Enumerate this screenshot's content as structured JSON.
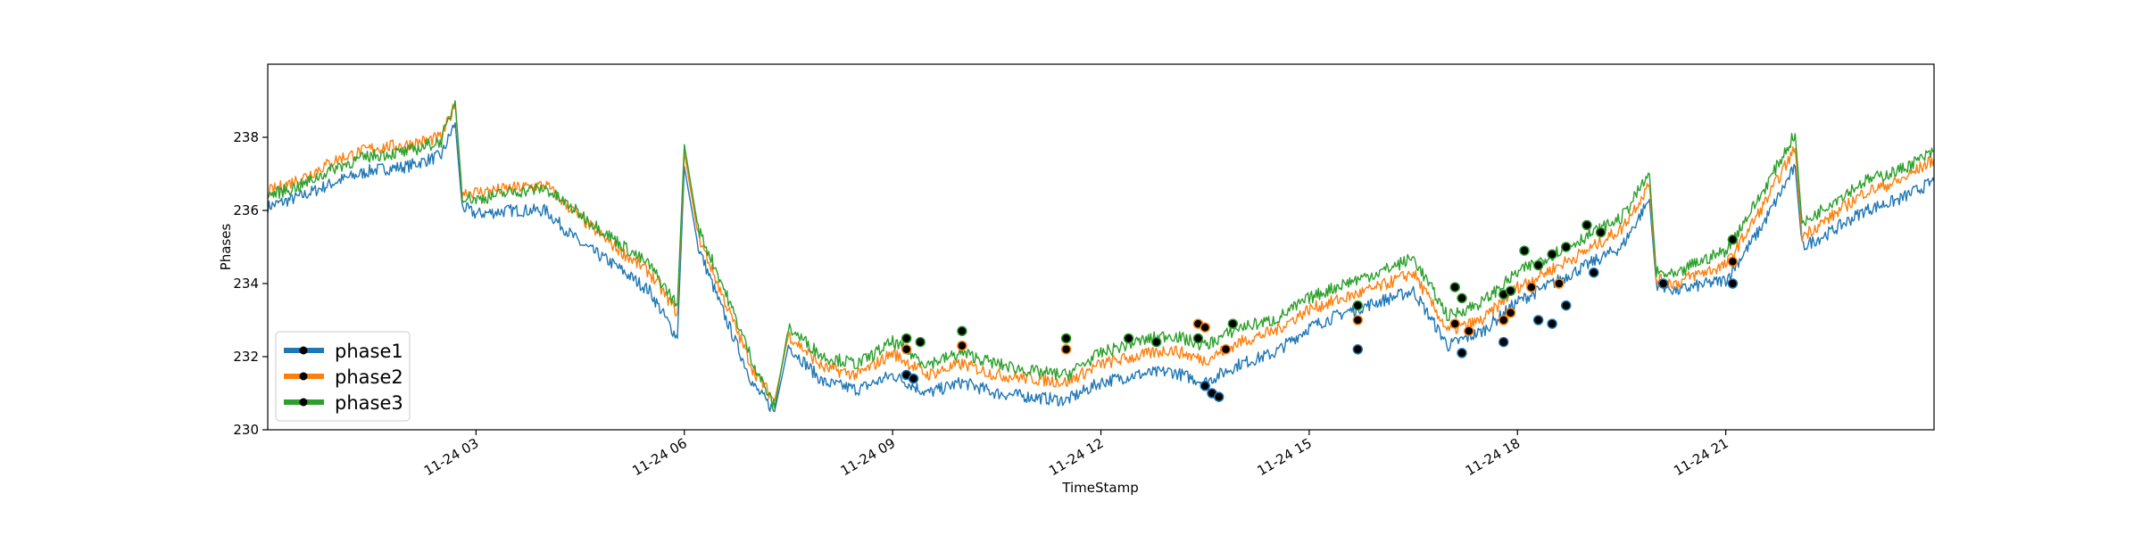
{
  "chart_data": {
    "type": "line",
    "title": "",
    "xlabel": "TimeStamp",
    "ylabel": "Phases",
    "x_tick_labels": [
      "11-24 03",
      "11-24 06",
      "11-24 09",
      "11-24 12",
      "11-24 15",
      "11-24 18",
      "11-24 21"
    ],
    "x_ticks_hours": [
      3,
      6,
      9,
      12,
      15,
      18,
      21
    ],
    "xlim_hours": [
      0,
      24
    ],
    "ylim": [
      230,
      240
    ],
    "y_ticks": [
      230,
      232,
      234,
      236,
      238
    ],
    "legend_position": "lower-left",
    "grid": false,
    "series": [
      {
        "name": "phase1",
        "color": "#1f77b4",
        "x": [
          0,
          0.5,
          1,
          1.5,
          2,
          2.5,
          2.7,
          2.8,
          3,
          3.5,
          4,
          4.5,
          5,
          5.5,
          5.9,
          6.0,
          6.2,
          6.5,
          7,
          7.3,
          7.5,
          8,
          8.5,
          9,
          9.5,
          10,
          10.5,
          11,
          11.5,
          12,
          12.5,
          13,
          13.5,
          14,
          14.5,
          15,
          15.5,
          16,
          16.5,
          17,
          17.5,
          18,
          18.5,
          19,
          19.5,
          19.9,
          20.0,
          20.3,
          20.5,
          21,
          21.5,
          22,
          22.1,
          22.5,
          23,
          23.5,
          24
        ],
        "values": [
          236.1,
          236.4,
          236.8,
          237.1,
          237.2,
          237.5,
          238.4,
          236.1,
          235.9,
          236.0,
          236.0,
          235.1,
          234.5,
          233.8,
          232.5,
          237.2,
          235.0,
          233.5,
          231.2,
          230.5,
          232.3,
          231.3,
          231.1,
          231.5,
          231.0,
          231.3,
          231.0,
          230.9,
          230.8,
          231.3,
          231.5,
          231.6,
          231.3,
          231.8,
          232.1,
          232.8,
          233.2,
          233.5,
          233.8,
          232.3,
          232.7,
          233.5,
          234.0,
          234.5,
          235.0,
          236.3,
          234.0,
          233.8,
          233.9,
          234.1,
          235.5,
          237.2,
          235.0,
          235.4,
          236.0,
          236.3,
          236.8
        ]
      },
      {
        "name": "phase2",
        "color": "#ff7f0e",
        "x": [
          0,
          0.5,
          1,
          1.5,
          2,
          2.5,
          2.7,
          2.8,
          3,
          3.5,
          4,
          4.5,
          5,
          5.5,
          5.9,
          6.0,
          6.2,
          6.5,
          7,
          7.3,
          7.5,
          8,
          8.5,
          9,
          9.5,
          10,
          10.5,
          11,
          11.5,
          12,
          12.5,
          13,
          13.5,
          14,
          14.5,
          15,
          15.5,
          16,
          16.5,
          17,
          17.5,
          18,
          18.5,
          19,
          19.5,
          19.9,
          20.0,
          20.3,
          20.5,
          21,
          21.5,
          22,
          22.1,
          22.5,
          23,
          23.5,
          24
        ],
        "values": [
          236.5,
          236.9,
          237.4,
          237.7,
          237.8,
          238.0,
          238.9,
          236.5,
          236.5,
          236.6,
          236.7,
          235.8,
          235.0,
          234.3,
          233.2,
          237.6,
          235.3,
          233.9,
          231.6,
          230.8,
          232.6,
          231.7,
          231.5,
          232.1,
          231.5,
          231.8,
          231.5,
          231.4,
          231.3,
          231.8,
          232.0,
          232.2,
          231.9,
          232.4,
          232.7,
          233.3,
          233.6,
          233.9,
          234.3,
          232.7,
          233.0,
          233.9,
          234.4,
          234.9,
          235.5,
          236.7,
          234.1,
          234.0,
          234.2,
          234.5,
          236.0,
          237.7,
          235.3,
          235.8,
          236.5,
          236.8,
          237.4
        ]
      },
      {
        "name": "phase3",
        "color": "#2ca02c",
        "x": [
          0,
          0.5,
          1,
          1.5,
          2,
          2.5,
          2.7,
          2.8,
          3,
          3.5,
          4,
          4.5,
          5,
          5.5,
          5.9,
          6.0,
          6.2,
          6.5,
          7,
          7.3,
          7.5,
          8,
          8.5,
          9,
          9.5,
          10,
          10.5,
          11,
          11.5,
          12,
          12.5,
          13,
          13.5,
          14,
          14.5,
          15,
          15.5,
          16,
          16.5,
          17,
          17.5,
          18,
          18.5,
          19,
          19.5,
          19.9,
          20.0,
          20.3,
          20.5,
          21,
          21.5,
          22,
          22.1,
          22.5,
          23,
          23.5,
          24
        ],
        "values": [
          236.4,
          236.7,
          237.2,
          237.5,
          237.6,
          237.9,
          239.0,
          236.4,
          236.3,
          236.5,
          236.6,
          235.9,
          235.2,
          234.5,
          233.4,
          237.8,
          235.5,
          234.2,
          231.8,
          230.6,
          232.8,
          232.0,
          231.8,
          232.4,
          231.8,
          232.1,
          231.8,
          231.6,
          231.5,
          232.1,
          232.4,
          232.6,
          232.3,
          232.8,
          233.0,
          233.6,
          234.0,
          234.3,
          234.7,
          233.1,
          233.5,
          234.3,
          234.8,
          235.3,
          235.8,
          237.0,
          234.3,
          234.2,
          234.5,
          234.9,
          236.4,
          238.1,
          235.6,
          236.2,
          236.8,
          237.1,
          237.6
        ]
      }
    ],
    "markers": [
      {
        "series": "phase1",
        "x": [
          9.2,
          9.3,
          13.5,
          13.6,
          13.7,
          15.7,
          17.2,
          17.8,
          18.3,
          18.5,
          18.7,
          19.1,
          20.1,
          21.1
        ],
        "values": [
          231.5,
          231.4,
          231.2,
          231.0,
          230.9,
          232.2,
          232.1,
          232.4,
          233.0,
          232.9,
          233.4,
          234.3,
          234.0,
          234.0
        ]
      },
      {
        "series": "phase2",
        "x": [
          9.2,
          10.0,
          11.5,
          13.4,
          13.5,
          13.8,
          15.7,
          17.1,
          17.3,
          17.8,
          17.9,
          18.2,
          18.6,
          19.2,
          21.1
        ],
        "values": [
          232.2,
          232.3,
          232.2,
          232.9,
          232.8,
          232.2,
          233.0,
          232.9,
          232.7,
          233.0,
          233.2,
          233.9,
          234.0,
          235.4,
          234.6
        ]
      },
      {
        "series": "phase3",
        "x": [
          9.2,
          9.4,
          10.0,
          11.5,
          12.4,
          12.8,
          13.4,
          13.9,
          15.7,
          17.1,
          17.2,
          17.8,
          17.9,
          18.1,
          18.3,
          18.5,
          18.7,
          19.0,
          19.2,
          21.1
        ],
        "values": [
          232.5,
          232.4,
          232.7,
          232.5,
          232.5,
          232.4,
          232.5,
          232.9,
          233.4,
          233.9,
          233.6,
          233.7,
          233.8,
          234.9,
          234.5,
          234.8,
          235.0,
          235.6,
          235.4,
          235.2
        ]
      }
    ]
  }
}
